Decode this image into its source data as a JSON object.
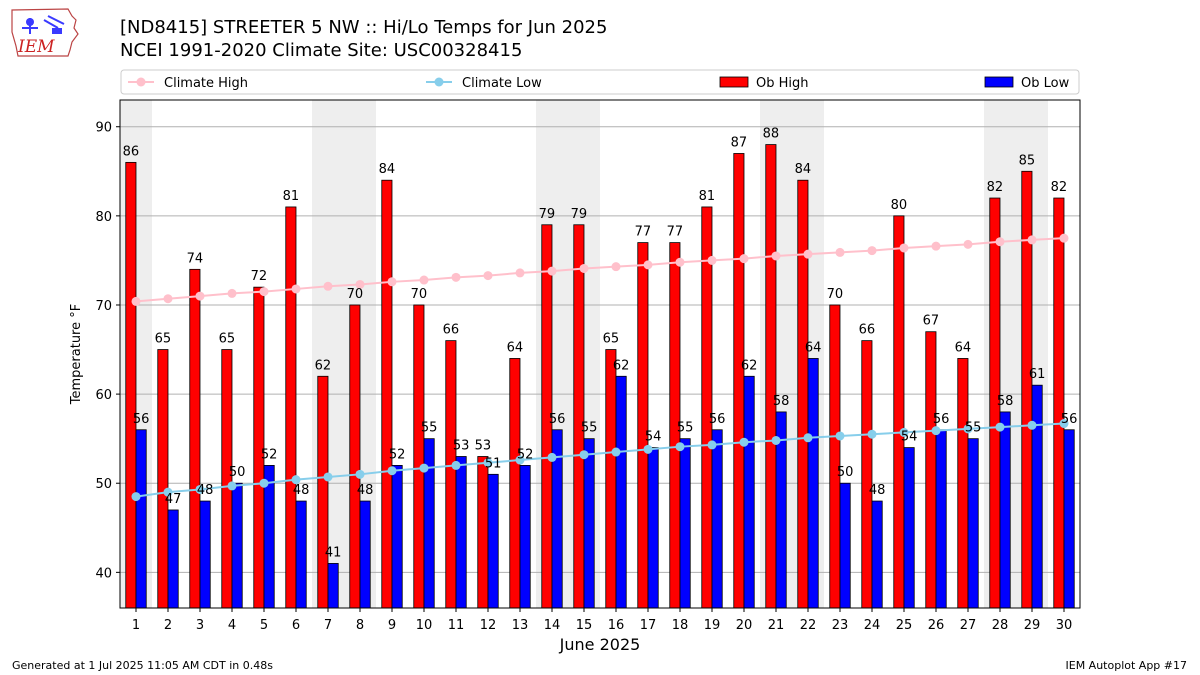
{
  "header": {
    "logo_text": "IEM",
    "title_line1": "[ND8415] STREETER 5 NW :: Hi/Lo Temps for Jun 2025",
    "title_line2": "NCEI 1991-2020 Climate Site: USC00328415"
  },
  "footer": {
    "generated": "Generated at 1 Jul 2025 11:05 AM CDT in 0.48s",
    "app": "IEM Autoplot App #17"
  },
  "colors": {
    "ob_high": "#ff0000",
    "ob_low": "#0000ff",
    "climate_high": "#ffc0cb",
    "climate_low": "#87ceeb",
    "weekend_shade": "#eeeeee"
  },
  "chart_data": {
    "type": "bar",
    "title": "[ND8415] STREETER 5 NW :: Hi/Lo Temps for Jun 2025",
    "subtitle": "NCEI 1991-2020 Climate Site: USC00328415",
    "xlabel": "June 2025",
    "ylabel": "Temperature °F",
    "ylim": [
      36,
      93
    ],
    "yticks": [
      40,
      50,
      60,
      70,
      80,
      90
    ],
    "grid": true,
    "legend_position": "top",
    "categories": [
      1,
      2,
      3,
      4,
      5,
      6,
      7,
      8,
      9,
      10,
      11,
      12,
      13,
      14,
      15,
      16,
      17,
      18,
      19,
      20,
      21,
      22,
      23,
      24,
      25,
      26,
      27,
      28,
      29,
      30
    ],
    "shaded_days": [
      1,
      7,
      8,
      14,
      15,
      21,
      22,
      28,
      29
    ],
    "series": [
      {
        "name": "Ob High",
        "type": "bar",
        "values": [
          86,
          65,
          74,
          65,
          72,
          81,
          62,
          70,
          84,
          70,
          66,
          53,
          64,
          79,
          79,
          65,
          77,
          77,
          81,
          87,
          88,
          84,
          70,
          66,
          80,
          67,
          64,
          82,
          85,
          82
        ]
      },
      {
        "name": "Ob Low",
        "type": "bar",
        "values": [
          56,
          47,
          48,
          50,
          52,
          48,
          41,
          48,
          52,
          55,
          53,
          51,
          52,
          56,
          55,
          62,
          54,
          55,
          56,
          62,
          58,
          64,
          50,
          48,
          54,
          56,
          55,
          58,
          61,
          56
        ]
      },
      {
        "name": "Climate High",
        "type": "line",
        "values": [
          70.4,
          70.7,
          71.0,
          71.3,
          71.5,
          71.8,
          72.1,
          72.3,
          72.6,
          72.8,
          73.1,
          73.3,
          73.6,
          73.8,
          74.1,
          74.3,
          74.5,
          74.8,
          75.0,
          75.2,
          75.5,
          75.7,
          75.9,
          76.1,
          76.4,
          76.6,
          76.8,
          77.1,
          77.3,
          77.5
        ]
      },
      {
        "name": "Climate Low",
        "type": "line",
        "values": [
          48.5,
          49.0,
          49.3,
          49.7,
          50.0,
          50.4,
          50.7,
          51.0,
          51.4,
          51.7,
          52.0,
          52.3,
          52.6,
          52.9,
          53.2,
          53.5,
          53.8,
          54.1,
          54.3,
          54.6,
          54.8,
          55.1,
          55.3,
          55.5,
          55.7,
          55.9,
          56.1,
          56.3,
          56.5,
          56.7
        ]
      }
    ]
  }
}
